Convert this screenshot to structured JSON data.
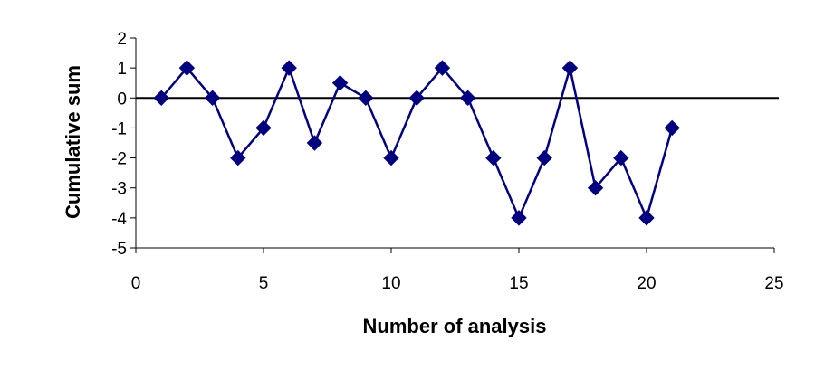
{
  "chart_data": {
    "type": "line",
    "title": "",
    "xlabel": "Number of analysis",
    "ylabel": "Cumulative sum",
    "xlim": [
      0,
      25
    ],
    "ylim": [
      -5,
      2
    ],
    "x_ticks": [
      0,
      5,
      10,
      15,
      20,
      25
    ],
    "y_ticks": [
      -5,
      -4,
      -3,
      -2,
      -1,
      0,
      1,
      2
    ],
    "grid": false,
    "reference_line": 0,
    "series": [
      {
        "x": [
          1,
          2,
          3,
          4,
          5,
          6,
          7,
          8,
          9,
          10,
          11,
          12,
          13,
          14,
          15,
          16,
          17,
          18,
          19,
          20,
          21
        ],
        "y": [
          0,
          1,
          0,
          -2,
          -1,
          1,
          -1.5,
          0.5,
          0,
          -2,
          0,
          1,
          0,
          -2,
          -4,
          -2,
          1,
          -3,
          -2,
          -4,
          -1
        ],
        "color": "#000080",
        "marker": "diamond"
      }
    ]
  }
}
